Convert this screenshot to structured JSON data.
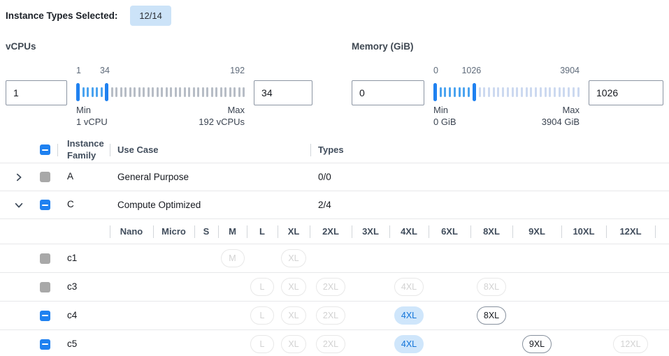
{
  "header": {
    "label": "Instance Types Selected:",
    "badge": "12/14"
  },
  "filters": {
    "vcpus": {
      "title": "vCPUs",
      "min_value": "1",
      "max_value": "34",
      "scale_start": "1",
      "scale_mid": "34",
      "scale_end": "192",
      "min_label": "Min",
      "min_sub": "1 vCPU",
      "max_label": "Max",
      "max_sub": "192 vCPUs",
      "ticks": {
        "active_ticks": 5,
        "inactive_ticks": 30
      }
    },
    "memory": {
      "title": "Memory (GiB)",
      "min_value": "0",
      "max_value": "1026",
      "scale_start": "0",
      "scale_mid": "1026",
      "scale_end": "3904",
      "min_label": "Min",
      "min_sub": "0 GiB",
      "max_label": "Max",
      "max_sub": "3904 GiB",
      "ticks": {
        "active_ticks": 7,
        "inactive_ticks": 22
      }
    }
  },
  "table": {
    "columns": {
      "family": "Instance Family",
      "use_case": "Use Case",
      "types": "Types"
    },
    "header_checkbox": "indeterminate",
    "size_columns": [
      "Nano",
      "Micro",
      "S",
      "M",
      "L",
      "XL",
      "2XL",
      "3XL",
      "4XL",
      "6XL",
      "8XL",
      "9XL",
      "10XL",
      "12XL"
    ],
    "rows": [
      {
        "type": "family",
        "expander": "collapsed",
        "checkbox": "disabled",
        "family": "A",
        "use_case": "General Purpose",
        "types": "0/0"
      },
      {
        "type": "family",
        "expander": "expanded",
        "checkbox": "indeterminate",
        "family": "C",
        "use_case": "Compute Optimized",
        "types": "2/4"
      },
      {
        "type": "size_header"
      },
      {
        "type": "instance",
        "checkbox": "disabled",
        "name": "c1",
        "chips": [
          {
            "size": "M",
            "state": "disabled"
          },
          {
            "size": "XL",
            "state": "disabled"
          }
        ]
      },
      {
        "type": "instance",
        "checkbox": "disabled",
        "name": "c3",
        "chips": [
          {
            "size": "L",
            "state": "disabled"
          },
          {
            "size": "XL",
            "state": "disabled"
          },
          {
            "size": "2XL",
            "state": "disabled"
          },
          {
            "size": "4XL",
            "state": "disabled"
          },
          {
            "size": "8XL",
            "state": "disabled"
          }
        ]
      },
      {
        "type": "instance",
        "checkbox": "indeterminate",
        "name": "c4",
        "chips": [
          {
            "size": "L",
            "state": "disabled"
          },
          {
            "size": "XL",
            "state": "disabled"
          },
          {
            "size": "2XL",
            "state": "disabled"
          },
          {
            "size": "4XL",
            "state": "selected"
          },
          {
            "size": "8XL",
            "state": "enabled"
          }
        ]
      },
      {
        "type": "instance",
        "checkbox": "indeterminate",
        "name": "c5",
        "chips": [
          {
            "size": "L",
            "state": "disabled"
          },
          {
            "size": "XL",
            "state": "disabled"
          },
          {
            "size": "2XL",
            "state": "disabled"
          },
          {
            "size": "4XL",
            "state": "selected"
          },
          {
            "size": "9XL",
            "state": "enabled"
          },
          {
            "size": "12XL",
            "state": "disabled"
          }
        ]
      }
    ]
  },
  "colors": {
    "accent_blue": "#1f81f0",
    "active_tick_blue": "#4aa3f0",
    "inactive_tick_gray": "#b7bdc6",
    "inactive_tick_light_blue": "#ccd9f0",
    "badge_bg": "#cce3f8",
    "chip_selected_bg": "#cfe6fb",
    "chip_selected_text": "#1274d9",
    "chip_enabled_border": "#87919e",
    "chip_disabled_border": "#e8e8e8",
    "disabled_checkbox_gray": "#a8a8a8"
  }
}
